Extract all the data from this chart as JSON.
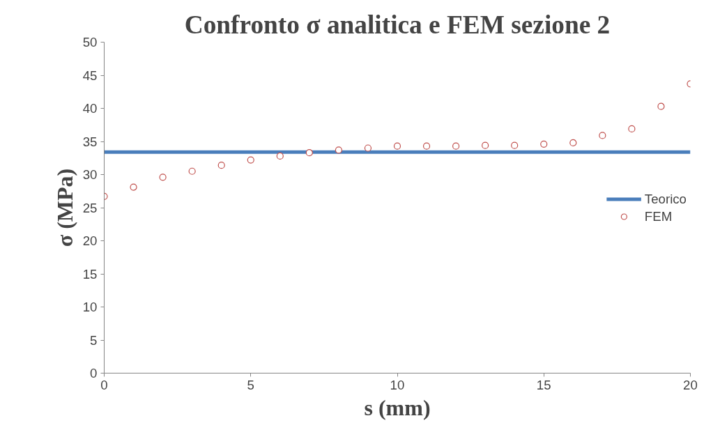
{
  "chart_data": {
    "type": "scatter",
    "title": "Confronto σ analitica e FEM sezione 2",
    "xlabel": "s (mm)",
    "ylabel": "σ (MPa)",
    "xlim": [
      0,
      20
    ],
    "xticks": [
      0,
      5,
      10,
      15,
      20
    ],
    "ylim": [
      0,
      50
    ],
    "yticks": [
      0,
      5,
      10,
      15,
      20,
      25,
      30,
      35,
      40,
      45,
      50
    ],
    "grid": false,
    "legend": "right",
    "series": [
      {
        "name": "Teorico",
        "type": "line",
        "color": "#4a7ebb",
        "x": [
          0,
          20
        ],
        "values": [
          33.4,
          33.4
        ],
        "marker": "none",
        "line_style": "solid"
      },
      {
        "name": "FEM",
        "color": "#c0504d",
        "x": [
          0,
          1,
          2,
          3,
          4,
          5,
          6,
          7,
          8,
          9,
          10,
          11,
          12,
          13,
          14,
          15,
          16,
          17,
          18,
          19,
          20
        ],
        "values": [
          26.7,
          28.1,
          29.6,
          30.5,
          31.4,
          32.2,
          32.8,
          33.3,
          33.7,
          34.0,
          34.3,
          34.3,
          34.3,
          34.4,
          34.4,
          34.6,
          34.8,
          35.9,
          36.9,
          40.3,
          43.7
        ],
        "marker": "circle"
      }
    ]
  }
}
